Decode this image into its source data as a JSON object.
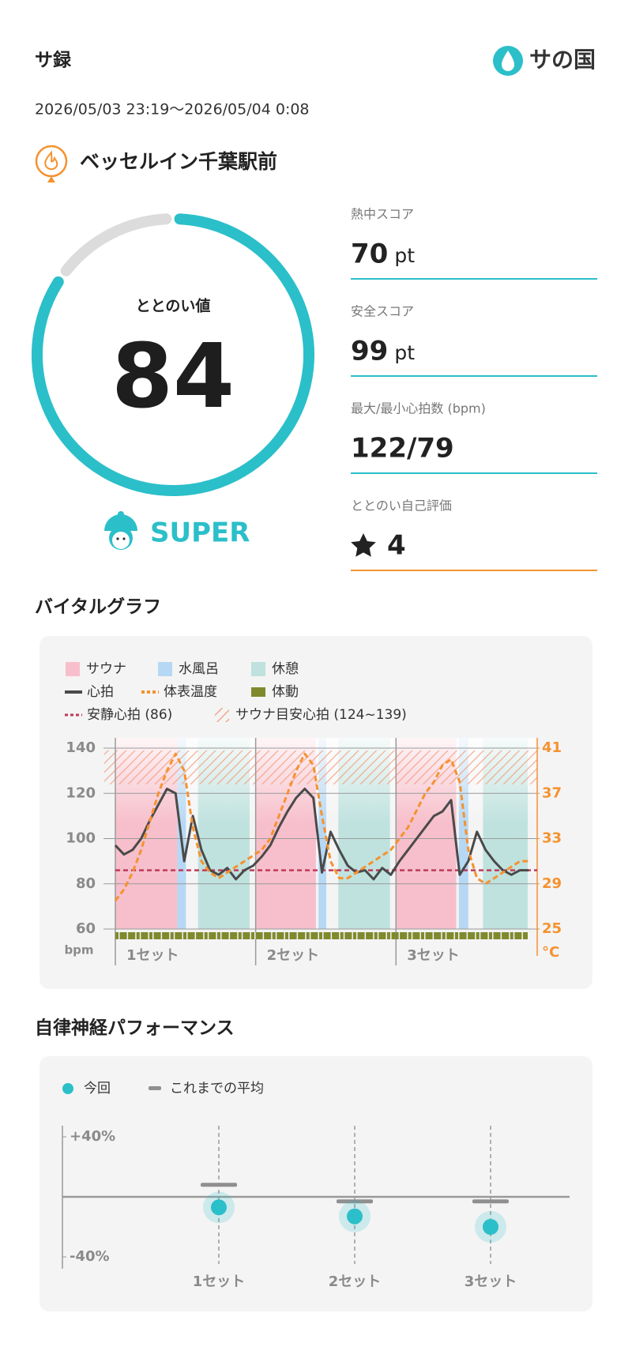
{
  "header": {
    "title": "サ録",
    "logo": "サの国",
    "period": "2026/05/03 23:19〜2026/05/04 0:08"
  },
  "venue": "ベッセルイン千葉駅前",
  "totonoi": {
    "label": "ととのい値",
    "value": 84,
    "range": [
      0,
      100
    ],
    "rank": "SUPER"
  },
  "scores": [
    {
      "label": "熱中スコア",
      "value": 70,
      "unit": "pt"
    },
    {
      "label": "安全スコア",
      "value": 99,
      "unit": "pt"
    },
    {
      "label": "最大/最小心拍数 (bpm)",
      "value": "122/79"
    },
    {
      "label": "ととのい自己評価",
      "value": 4
    }
  ],
  "chart_data": [
    {
      "type": "line",
      "title": "バイタルグラフ",
      "bands": [
        {
          "name": "サウナ",
          "color": "#f7bfcb",
          "ranges": [
            [
              0,
              7.2
            ],
            [
              16.3,
              23.3
            ],
            [
              32.6,
              39.6
            ]
          ]
        },
        {
          "name": "水風呂",
          "color": "#b6d8f4",
          "ranges": [
            [
              7.2,
              8.2
            ],
            [
              23.6,
              24.5
            ],
            [
              39.9,
              41
            ]
          ]
        },
        {
          "name": "休憩",
          "color": "#bfe2de",
          "ranges": [
            [
              9.6,
              15.6
            ],
            [
              25.9,
              31.9
            ],
            [
              42.7,
              47.9
            ]
          ]
        }
      ],
      "x": [
        0,
        1,
        2,
        3,
        4,
        5,
        6,
        7,
        8,
        9,
        10,
        11,
        12,
        13,
        14,
        15,
        16,
        17,
        18,
        19,
        20,
        21,
        22,
        23,
        24,
        25,
        26,
        27,
        28,
        29,
        30,
        31,
        32,
        33,
        34,
        35,
        36,
        37,
        38,
        39,
        40,
        41,
        42,
        43,
        44,
        45,
        46,
        47,
        48
      ],
      "series": [
        {
          "name": "心拍",
          "color": "#4a4a4a",
          "values": [
            97,
            93,
            95,
            100,
            108,
            115,
            122,
            120,
            90,
            110,
            95,
            86,
            84,
            87,
            82,
            86,
            88,
            92,
            97,
            105,
            112,
            118,
            122,
            118,
            85,
            103,
            95,
            88,
            85,
            86,
            82,
            87,
            84,
            90,
            95,
            100,
            105,
            110,
            112,
            117,
            84,
            90,
            103,
            95,
            90,
            86,
            84,
            86,
            86
          ]
        },
        {
          "name": "体表温度",
          "color": "#f5922f",
          "axis": "y2",
          "values": [
            27.5,
            28.5,
            30,
            32,
            34.5,
            37,
            39,
            40.5,
            39,
            34,
            31,
            30,
            29.5,
            30,
            30.5,
            31,
            31.5,
            32,
            33,
            35,
            37,
            39,
            40.5,
            39.5,
            35,
            31,
            29.5,
            29.5,
            30,
            30.5,
            31,
            31.5,
            32,
            33,
            34,
            35.5,
            37,
            38,
            39.5,
            40,
            38,
            32,
            29.5,
            29,
            29.5,
            30,
            30.5,
            31,
            31
          ]
        },
        {
          "name": "体動",
          "color": "#7f8a2e"
        }
      ],
      "resting": {
        "name": "安静心拍 (86)",
        "value": 86,
        "color": "#c0395a"
      },
      "target": {
        "name": "サウナ目安心拍 (124~139)",
        "range": [
          124,
          139
        ],
        "color": "#f29a7a"
      },
      "sets": [
        {
          "label": "1セット",
          "start": 0
        },
        {
          "label": "2セット",
          "start": 16.3
        },
        {
          "label": "3セット",
          "start": 32.6
        }
      ],
      "xlim": [
        0,
        49
      ],
      "ylim": [
        60,
        140
      ],
      "yticks": [
        60,
        80,
        100,
        120,
        140
      ],
      "ylabel": "bpm",
      "y2lim": [
        25,
        41
      ],
      "y2ticks": [
        25,
        29,
        33,
        37,
        41
      ],
      "y2label": "°C",
      "grid": true
    },
    {
      "type": "dot",
      "title": "自律神経パフォーマンス",
      "categories": [
        "1セット",
        "2セット",
        "3セット"
      ],
      "series": [
        {
          "name": "今回",
          "color": "#2bbfc9",
          "values": [
            -7,
            -13,
            -20
          ]
        },
        {
          "name": "これまでの平均",
          "color": "#8f8f8f",
          "values": [
            8,
            -3,
            -3
          ]
        }
      ],
      "ylim": [
        -40,
        40
      ],
      "yticks": [
        {
          "value": 40,
          "label": "+40%"
        },
        {
          "value": -40,
          "label": "-40%"
        }
      ]
    }
  ]
}
